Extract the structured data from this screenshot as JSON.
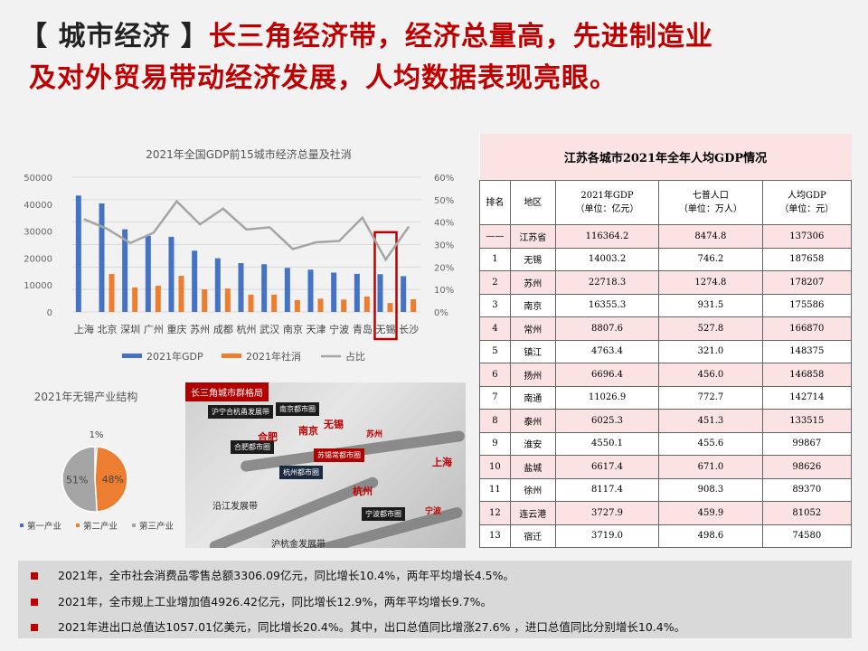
{
  "title": {
    "prefix": "【 城市经济 】",
    "line1": "长三角经济带，经济总量高，先进制造业",
    "line2": "及对外贸易带动经济发展，人均数据表现亮眼。"
  },
  "chart_data": [
    {
      "type": "bar",
      "title": "2021年全国GDP前15城市经济总量及社消",
      "categories": [
        "上海",
        "北京",
        "深圳",
        "广州",
        "重庆",
        "苏州",
        "成都",
        "杭州",
        "武汉",
        "南京",
        "天津",
        "宁波",
        "青岛",
        "无锡",
        "长沙"
      ],
      "series": [
        {
          "name": "2021年GDP",
          "type": "bar",
          "axis": "left",
          "color": "#4472c4",
          "values": [
            43214,
            40269,
            30664,
            28232,
            27894,
            22718,
            19917,
            18109,
            17717,
            16355,
            15695,
            14595,
            14136,
            14003,
            13271
          ]
        },
        {
          "name": "2021年社消",
          "type": "bar",
          "axis": "left",
          "color": "#ed7d31",
          "values": [
            null,
            14100,
            9100,
            9700,
            13400,
            8400,
            8700,
            6400,
            6400,
            4400,
            4900,
            4600,
            5700,
            3300,
            4700
          ]
        },
        {
          "name": "占比",
          "type": "line",
          "axis": "right",
          "color": "#a5a5a5",
          "values": [
            41.3,
            37,
            30.7,
            35.3,
            49.3,
            39,
            46,
            36.7,
            37.7,
            28,
            31,
            31.6,
            42,
            23.3,
            38
          ]
        }
      ],
      "left_ylim": [
        0,
        50000
      ],
      "left_ticks": [
        "0",
        "10000",
        "20000",
        "30000",
        "40000",
        "50000"
      ],
      "right_ylim": [
        0,
        60
      ],
      "right_ticks": [
        "0%",
        "10%",
        "20%",
        "30%",
        "40%",
        "50%",
        "60%"
      ],
      "grid": true,
      "legend": "bottom",
      "highlight": "无锡",
      "highlight_color": "#c00000"
    },
    {
      "type": "pie",
      "title": "2021年无锡产业结构",
      "labels": [
        "第一产业",
        "第二产业",
        "第三产业"
      ],
      "values": [
        1,
        48,
        51
      ],
      "value_labels": [
        "1%",
        "48%",
        "51%"
      ],
      "colors": [
        "#4472c4",
        "#ed7d31",
        "#a5a5a5"
      ],
      "legend": "bottom"
    }
  ],
  "map": {
    "header": "长三角城市群格局",
    "tags": [
      "沪宁合杭甬发展带",
      "南京都市圈",
      "合肥都市圈",
      "苏锡常都市圈",
      "杭州都市圈",
      "宁波都市圈"
    ],
    "cities": [
      "南京",
      "无锡",
      "合肥",
      "上海",
      "杭州",
      "苏州",
      "宁波"
    ],
    "bands": [
      "沿江发展带",
      "沪杭金发展带"
    ]
  },
  "table": {
    "caption": "江苏各城市2021年全年人均GDP情况",
    "headers": [
      [
        "排名"
      ],
      [
        "地区"
      ],
      [
        "2021年GDP",
        "（单位：亿元）"
      ],
      [
        "七普人口",
        "（单位：万人）"
      ],
      [
        "人均GDP",
        "（单位：元）"
      ]
    ],
    "rows": [
      [
        "——",
        "江苏省",
        "116364.2",
        "8474.8",
        "137306"
      ],
      [
        "1",
        "无锡",
        "14003.2",
        "746.2",
        "187658"
      ],
      [
        "2",
        "苏州",
        "22718.3",
        "1274.8",
        "178207"
      ],
      [
        "3",
        "南京",
        "16355.3",
        "931.5",
        "175586"
      ],
      [
        "4",
        "常州",
        "8807.6",
        "527.8",
        "166870"
      ],
      [
        "5",
        "镇江",
        "4763.4",
        "321.0",
        "148375"
      ],
      [
        "6",
        "扬州",
        "6696.4",
        "456.0",
        "146858"
      ],
      [
        "7",
        "南通",
        "11026.9",
        "772.7",
        "142714"
      ],
      [
        "8",
        "泰州",
        "6025.3",
        "451.3",
        "133515"
      ],
      [
        "9",
        "淮安",
        "4550.1",
        "455.6",
        "99867"
      ],
      [
        "10",
        "盐城",
        "6617.4",
        "671.0",
        "98626"
      ],
      [
        "11",
        "徐州",
        "8117.4",
        "908.3",
        "89370"
      ],
      [
        "12",
        "连云港",
        "3727.9",
        "459.9",
        "81052"
      ],
      [
        "13",
        "宿迁",
        "3719.0",
        "498.6",
        "74580"
      ]
    ]
  },
  "notes": [
    "2021年，全市社会消费品零售总额3306.09亿元，同比增长10.4%，两年平均增长4.5%。",
    "2021年，全市规上工业增加值4926.42亿元，同比增长12.9%，两年平均增长9.7%。",
    "2021年进出口总值达1057.01亿美元，同比增长20.4%。其中，出口总值同比增涨27.6% ，进口总值同比分别增长10.4%。"
  ]
}
